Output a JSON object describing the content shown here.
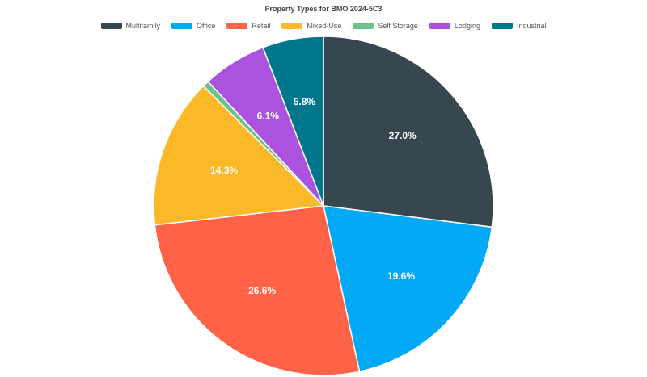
{
  "chart_data": {
    "type": "pie",
    "title": "Property Types for BMO 2024-5C3",
    "legend_position": "top",
    "slices": [
      {
        "name": "Multifamily",
        "value": 27.0,
        "label": "27.0%",
        "color": "#37474f"
      },
      {
        "name": "Office",
        "value": 19.6,
        "label": "19.6%",
        "color": "#03a9f4"
      },
      {
        "name": "Retail",
        "value": 26.6,
        "label": "26.6%",
        "color": "#ff6347"
      },
      {
        "name": "Mixed-Use",
        "value": 14.3,
        "label": "14.3%",
        "color": "#fbb829"
      },
      {
        "name": "Self Storage",
        "value": 0.6,
        "label": "",
        "color": "#6cc18c"
      },
      {
        "name": "Lodging",
        "value": 6.1,
        "label": "6.1%",
        "color": "#ab52df"
      },
      {
        "name": "Industrial",
        "value": 5.8,
        "label": "5.8%",
        "color": "#00768c"
      }
    ]
  }
}
